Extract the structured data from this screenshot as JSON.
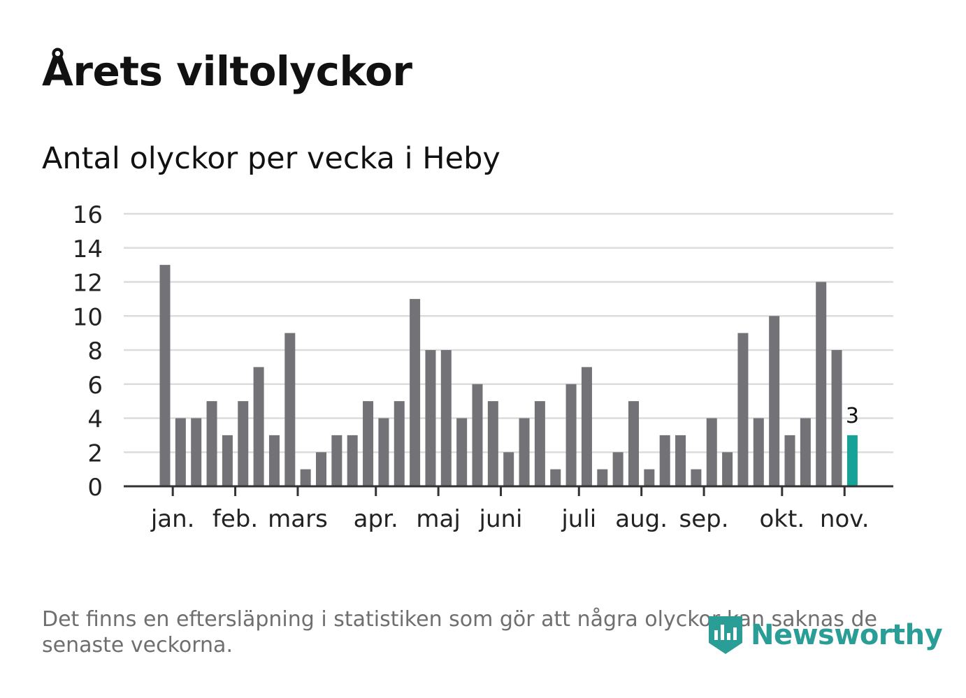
{
  "title": "Årets viltolyckor",
  "subtitle": "Antal olyckor per vecka i Heby",
  "footnote": "Det finns en eftersläpning i statistiken som gör att några olyckor kan saknas de senaste veckorna.",
  "logo": {
    "text": "Newsworthy",
    "icon": "newsworthy-logo-icon"
  },
  "colors": {
    "bar": "#737277",
    "highlight": "#16a297",
    "grid": "#dcdcdc",
    "axis": "#333333"
  },
  "chart_data": {
    "type": "bar",
    "title": "Antal olyckor per vecka i Heby",
    "xlabel": "",
    "ylabel": "",
    "ylim": [
      0,
      16
    ],
    "yticks": [
      "0",
      "2",
      "4",
      "6",
      "8",
      "10",
      "12",
      "14",
      "16"
    ],
    "values": [
      13,
      4,
      4,
      5,
      3,
      5,
      7,
      3,
      9,
      1,
      2,
      3,
      3,
      5,
      4,
      5,
      11,
      8,
      8,
      4,
      6,
      5,
      2,
      4,
      5,
      1,
      6,
      7,
      1,
      2,
      5,
      1,
      3,
      3,
      1,
      4,
      2,
      9,
      4,
      10,
      3,
      4,
      12,
      8,
      3
    ],
    "highlight_index": 44,
    "highlight_label": "3",
    "month_labels": [
      {
        "label": "jan.",
        "week": 0.5
      },
      {
        "label": "feb.",
        "week": 4.5
      },
      {
        "label": "mars",
        "week": 8.5
      },
      {
        "label": "apr.",
        "week": 13.5
      },
      {
        "label": "maj",
        "week": 17.5
      },
      {
        "label": "juni",
        "week": 21.5
      },
      {
        "label": "juli",
        "week": 26.5
      },
      {
        "label": "aug.",
        "week": 30.5
      },
      {
        "label": "sep.",
        "week": 34.5
      },
      {
        "label": "okt.",
        "week": 39.5
      },
      {
        "label": "nov.",
        "week": 43.5
      }
    ],
    "grid": true,
    "legend": "none"
  }
}
